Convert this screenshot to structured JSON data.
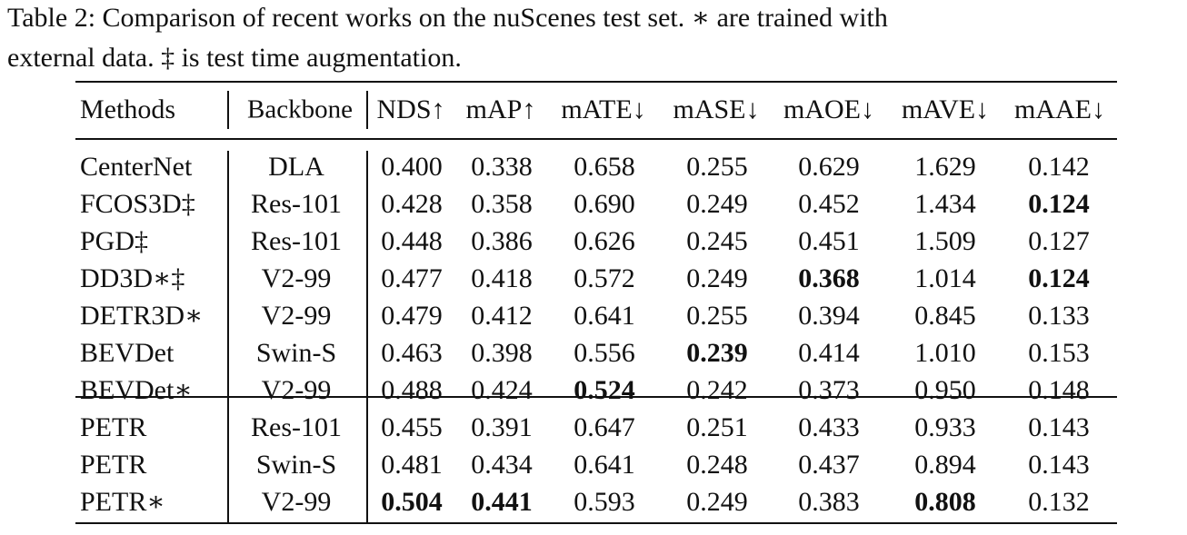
{
  "caption": [
    "Table 2: Comparison of recent works on the nuScenes test set. ∗ are trained with",
    "external data. ‡ is test time augmentation."
  ],
  "table": {
    "header": [
      "Methods",
      "Backbone",
      "NDS↑",
      "mAP↑",
      "mATE↓",
      "mASE↓",
      "mAOE↓",
      "mAVE↓",
      "mAAE↓"
    ],
    "groups": [
      [
        {
          "method": "CenterNet",
          "backbone": "DLA",
          "values": [
            "0.400",
            "0.338",
            "0.658",
            "0.255",
            "0.629",
            "1.629",
            "0.142"
          ],
          "bold": []
        },
        {
          "method": "FCOS3D‡",
          "backbone": "Res-101",
          "values": [
            "0.428",
            "0.358",
            "0.690",
            "0.249",
            "0.452",
            "1.434",
            "0.124"
          ],
          "bold": [
            6
          ]
        },
        {
          "method": "PGD‡",
          "backbone": "Res-101",
          "values": [
            "0.448",
            "0.386",
            "0.626",
            "0.245",
            "0.451",
            "1.509",
            "0.127"
          ],
          "bold": []
        },
        {
          "method": "DD3D∗‡",
          "backbone": "V2-99",
          "values": [
            "0.477",
            "0.418",
            "0.572",
            "0.249",
            "0.368",
            "1.014",
            "0.124"
          ],
          "bold": [
            4,
            6
          ]
        },
        {
          "method": "DETR3D∗",
          "backbone": "V2-99",
          "values": [
            "0.479",
            "0.412",
            "0.641",
            "0.255",
            "0.394",
            "0.845",
            "0.133"
          ],
          "bold": []
        },
        {
          "method": "BEVDet",
          "backbone": "Swin-S",
          "values": [
            "0.463",
            "0.398",
            "0.556",
            "0.239",
            "0.414",
            "1.010",
            "0.153"
          ],
          "bold": [
            3
          ]
        },
        {
          "method": "BEVDet∗",
          "backbone": "V2-99",
          "values": [
            "0.488",
            "0.424",
            "0.524",
            "0.242",
            "0.373",
            "0.950",
            "0.148"
          ],
          "bold": [
            2
          ]
        }
      ],
      [
        {
          "method": "PETR",
          "backbone": "Res-101",
          "values": [
            "0.455",
            "0.391",
            "0.647",
            "0.251",
            "0.433",
            "0.933",
            "0.143"
          ],
          "bold": []
        },
        {
          "method": "PETR",
          "backbone": "Swin-S",
          "values": [
            "0.481",
            "0.434",
            "0.641",
            "0.248",
            "0.437",
            "0.894",
            "0.143"
          ],
          "bold": []
        },
        {
          "method": "PETR∗",
          "backbone": "V2-99",
          "values": [
            "0.504",
            "0.441",
            "0.593",
            "0.249",
            "0.383",
            "0.808",
            "0.132"
          ],
          "bold": [
            0,
            1,
            5
          ]
        }
      ]
    ]
  }
}
